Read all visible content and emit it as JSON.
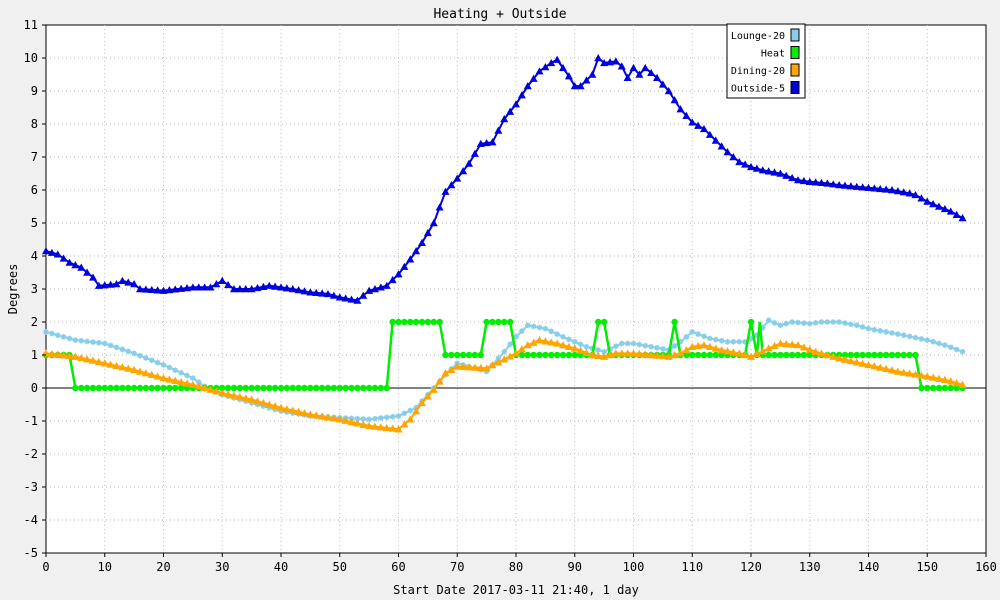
{
  "chart_data": {
    "type": "line",
    "title": "Heating + Outside",
    "xlabel": "Start Date 2017-03-11 21:40, 1 day",
    "ylabel": "Degrees",
    "xlim": [
      0,
      160
    ],
    "ylim": [
      -5,
      11
    ],
    "xticks": [
      0,
      10,
      20,
      30,
      40,
      50,
      60,
      70,
      80,
      90,
      100,
      110,
      120,
      130,
      140,
      150,
      160
    ],
    "yticks": [
      -5,
      -4,
      -3,
      -2,
      -1,
      0,
      1,
      2,
      3,
      4,
      5,
      6,
      7,
      8,
      9,
      10,
      11
    ],
    "grid": true,
    "legend_position": "top-right",
    "series": [
      {
        "name": "Lounge-20",
        "color": "#87ceeb",
        "marker": "star",
        "points": [
          [
            0,
            1.7
          ],
          [
            5,
            1.45
          ],
          [
            10,
            1.35
          ],
          [
            15,
            1.05
          ],
          [
            20,
            0.7
          ],
          [
            25,
            0.3
          ],
          [
            27,
            0.05
          ],
          [
            30,
            -0.2
          ],
          [
            35,
            -0.45
          ],
          [
            40,
            -0.7
          ],
          [
            45,
            -0.85
          ],
          [
            50,
            -0.9
          ],
          [
            55,
            -0.95
          ],
          [
            60,
            -0.85
          ],
          [
            63,
            -0.6
          ],
          [
            66,
            0.0
          ],
          [
            68,
            0.4
          ],
          [
            70,
            0.75
          ],
          [
            75,
            0.5
          ],
          [
            78,
            1.1
          ],
          [
            80,
            1.55
          ],
          [
            82,
            1.9
          ],
          [
            85,
            1.8
          ],
          [
            88,
            1.55
          ],
          [
            92,
            1.25
          ],
          [
            95,
            1.1
          ],
          [
            98,
            1.35
          ],
          [
            100,
            1.35
          ],
          [
            103,
            1.25
          ],
          [
            106,
            1.15
          ],
          [
            108,
            1.4
          ],
          [
            110,
            1.7
          ],
          [
            113,
            1.5
          ],
          [
            116,
            1.4
          ],
          [
            119,
            1.4
          ],
          [
            121,
            1.6
          ],
          [
            123,
            2.05
          ],
          [
            125,
            1.9
          ],
          [
            127,
            2.0
          ],
          [
            130,
            1.95
          ],
          [
            132,
            2.0
          ],
          [
            135,
            2.0
          ],
          [
            138,
            1.9
          ],
          [
            140,
            1.8
          ],
          [
            143,
            1.7
          ],
          [
            146,
            1.6
          ],
          [
            150,
            1.45
          ],
          [
            153,
            1.3
          ],
          [
            156,
            1.1
          ]
        ]
      },
      {
        "name": "Heat",
        "color": "#00ee00",
        "marker": "dot",
        "points": [
          [
            0,
            1
          ],
          [
            4,
            1
          ],
          [
            5,
            0
          ],
          [
            58,
            0
          ],
          [
            59,
            2
          ],
          [
            67,
            2
          ],
          [
            68,
            1
          ],
          [
            74,
            1
          ],
          [
            75,
            2
          ],
          [
            79,
            2
          ],
          [
            80,
            1
          ],
          [
            93,
            1
          ],
          [
            94,
            2
          ],
          [
            95,
            2
          ],
          [
            96,
            1
          ],
          [
            106,
            1
          ],
          [
            107,
            2
          ],
          [
            108,
            1
          ],
          [
            119,
            1
          ],
          [
            120,
            2
          ],
          [
            121,
            1
          ],
          [
            121.5,
            2
          ],
          [
            122,
            1
          ],
          [
            148,
            1
          ],
          [
            149,
            0
          ],
          [
            156,
            0
          ]
        ]
      },
      {
        "name": "Dining-20",
        "color": "#ffa500",
        "marker": "triangle",
        "points": [
          [
            0,
            1.05
          ],
          [
            5,
            0.95
          ],
          [
            10,
            0.75
          ],
          [
            15,
            0.55
          ],
          [
            20,
            0.3
          ],
          [
            25,
            0.1
          ],
          [
            30,
            -0.15
          ],
          [
            35,
            -0.35
          ],
          [
            40,
            -0.6
          ],
          [
            45,
            -0.8
          ],
          [
            50,
            -0.95
          ],
          [
            55,
            -1.15
          ],
          [
            60,
            -1.25
          ],
          [
            62,
            -0.95
          ],
          [
            64,
            -0.45
          ],
          [
            66,
            -0.05
          ],
          [
            68,
            0.45
          ],
          [
            70,
            0.65
          ],
          [
            75,
            0.6
          ],
          [
            80,
            1.05
          ],
          [
            82,
            1.3
          ],
          [
            84,
            1.45
          ],
          [
            87,
            1.35
          ],
          [
            90,
            1.2
          ],
          [
            93,
            1.0
          ],
          [
            95,
            0.95
          ],
          [
            97,
            1.05
          ],
          [
            100,
            1.05
          ],
          [
            103,
            1.0
          ],
          [
            106,
            0.95
          ],
          [
            108,
            1.05
          ],
          [
            110,
            1.25
          ],
          [
            112,
            1.3
          ],
          [
            115,
            1.15
          ],
          [
            118,
            1.05
          ],
          [
            120,
            0.95
          ],
          [
            123,
            1.2
          ],
          [
            125,
            1.35
          ],
          [
            128,
            1.3
          ],
          [
            131,
            1.1
          ],
          [
            135,
            0.9
          ],
          [
            140,
            0.7
          ],
          [
            145,
            0.5
          ],
          [
            150,
            0.35
          ],
          [
            153,
            0.25
          ],
          [
            156,
            0.1
          ]
        ]
      },
      {
        "name": "Outside-5",
        "color": "#0000dd",
        "marker": "triangle",
        "points": [
          [
            0,
            4.15
          ],
          [
            2,
            4.05
          ],
          [
            4,
            3.8
          ],
          [
            6,
            3.65
          ],
          [
            8,
            3.35
          ],
          [
            9,
            3.1
          ],
          [
            12,
            3.15
          ],
          [
            13,
            3.25
          ],
          [
            15,
            3.15
          ],
          [
            16,
            3.0
          ],
          [
            20,
            2.95
          ],
          [
            25,
            3.05
          ],
          [
            28,
            3.05
          ],
          [
            30,
            3.25
          ],
          [
            32,
            3.0
          ],
          [
            35,
            3.0
          ],
          [
            38,
            3.1
          ],
          [
            42,
            3.0
          ],
          [
            45,
            2.9
          ],
          [
            48,
            2.85
          ],
          [
            50,
            2.75
          ],
          [
            53,
            2.65
          ],
          [
            55,
            2.95
          ],
          [
            58,
            3.1
          ],
          [
            60,
            3.45
          ],
          [
            62,
            3.9
          ],
          [
            64,
            4.4
          ],
          [
            66,
            5.0
          ],
          [
            68,
            5.95
          ],
          [
            70,
            6.35
          ],
          [
            72,
            6.8
          ],
          [
            74,
            7.4
          ],
          [
            76,
            7.45
          ],
          [
            78,
            8.15
          ],
          [
            80,
            8.6
          ],
          [
            82,
            9.15
          ],
          [
            84,
            9.6
          ],
          [
            86,
            9.85
          ],
          [
            87,
            9.95
          ],
          [
            89,
            9.45
          ],
          [
            90,
            9.15
          ],
          [
            91,
            9.15
          ],
          [
            93,
            9.5
          ],
          [
            94,
            10.0
          ],
          [
            95,
            9.85
          ],
          [
            97,
            9.9
          ],
          [
            98,
            9.75
          ],
          [
            99,
            9.4
          ],
          [
            100,
            9.7
          ],
          [
            101,
            9.5
          ],
          [
            102,
            9.7
          ],
          [
            104,
            9.4
          ],
          [
            106,
            9.0
          ],
          [
            108,
            8.45
          ],
          [
            110,
            8.05
          ],
          [
            112,
            7.85
          ],
          [
            114,
            7.5
          ],
          [
            116,
            7.15
          ],
          [
            118,
            6.85
          ],
          [
            120,
            6.7
          ],
          [
            122,
            6.6
          ],
          [
            125,
            6.5
          ],
          [
            128,
            6.3
          ],
          [
            130,
            6.25
          ],
          [
            133,
            6.2
          ],
          [
            135,
            6.15
          ],
          [
            138,
            6.1
          ],
          [
            141,
            6.05
          ],
          [
            144,
            6.0
          ],
          [
            147,
            5.9
          ],
          [
            148,
            5.85
          ],
          [
            150,
            5.65
          ],
          [
            152,
            5.5
          ],
          [
            154,
            5.35
          ],
          [
            156,
            5.15
          ]
        ]
      }
    ]
  }
}
